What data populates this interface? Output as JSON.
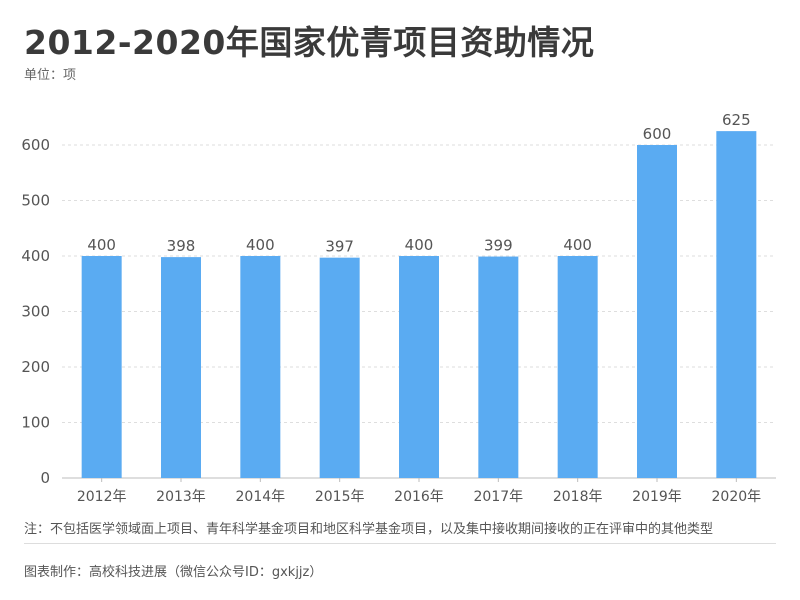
{
  "header": {
    "title": "2012-2020年国家优青项目资助情况",
    "unit": "单位：项"
  },
  "footer": {
    "note": "注：不包括医学领域面上项目、青年科学基金项目和地区科学基金项目，以及集中接收期间接收的正在评审中的其他类型",
    "source": "图表制作：高校科技进展（微信公众号ID：gxkjjz）"
  },
  "colors": {
    "bar": "#5aabf2",
    "grid": "#dedede",
    "axis": "#bdbdbd",
    "tick_text": "#555555",
    "label_text": "#555555"
  },
  "chart_data": {
    "type": "bar",
    "categories": [
      "2012年",
      "2013年",
      "2014年",
      "2015年",
      "2016年",
      "2017年",
      "2018年",
      "2019年",
      "2020年"
    ],
    "values": [
      400,
      398,
      400,
      397,
      400,
      399,
      400,
      600,
      625
    ],
    "ylim": [
      0,
      700
    ],
    "yticks": [
      0,
      100,
      200,
      300,
      400,
      500,
      600
    ],
    "grid": true,
    "data_labels": true
  }
}
